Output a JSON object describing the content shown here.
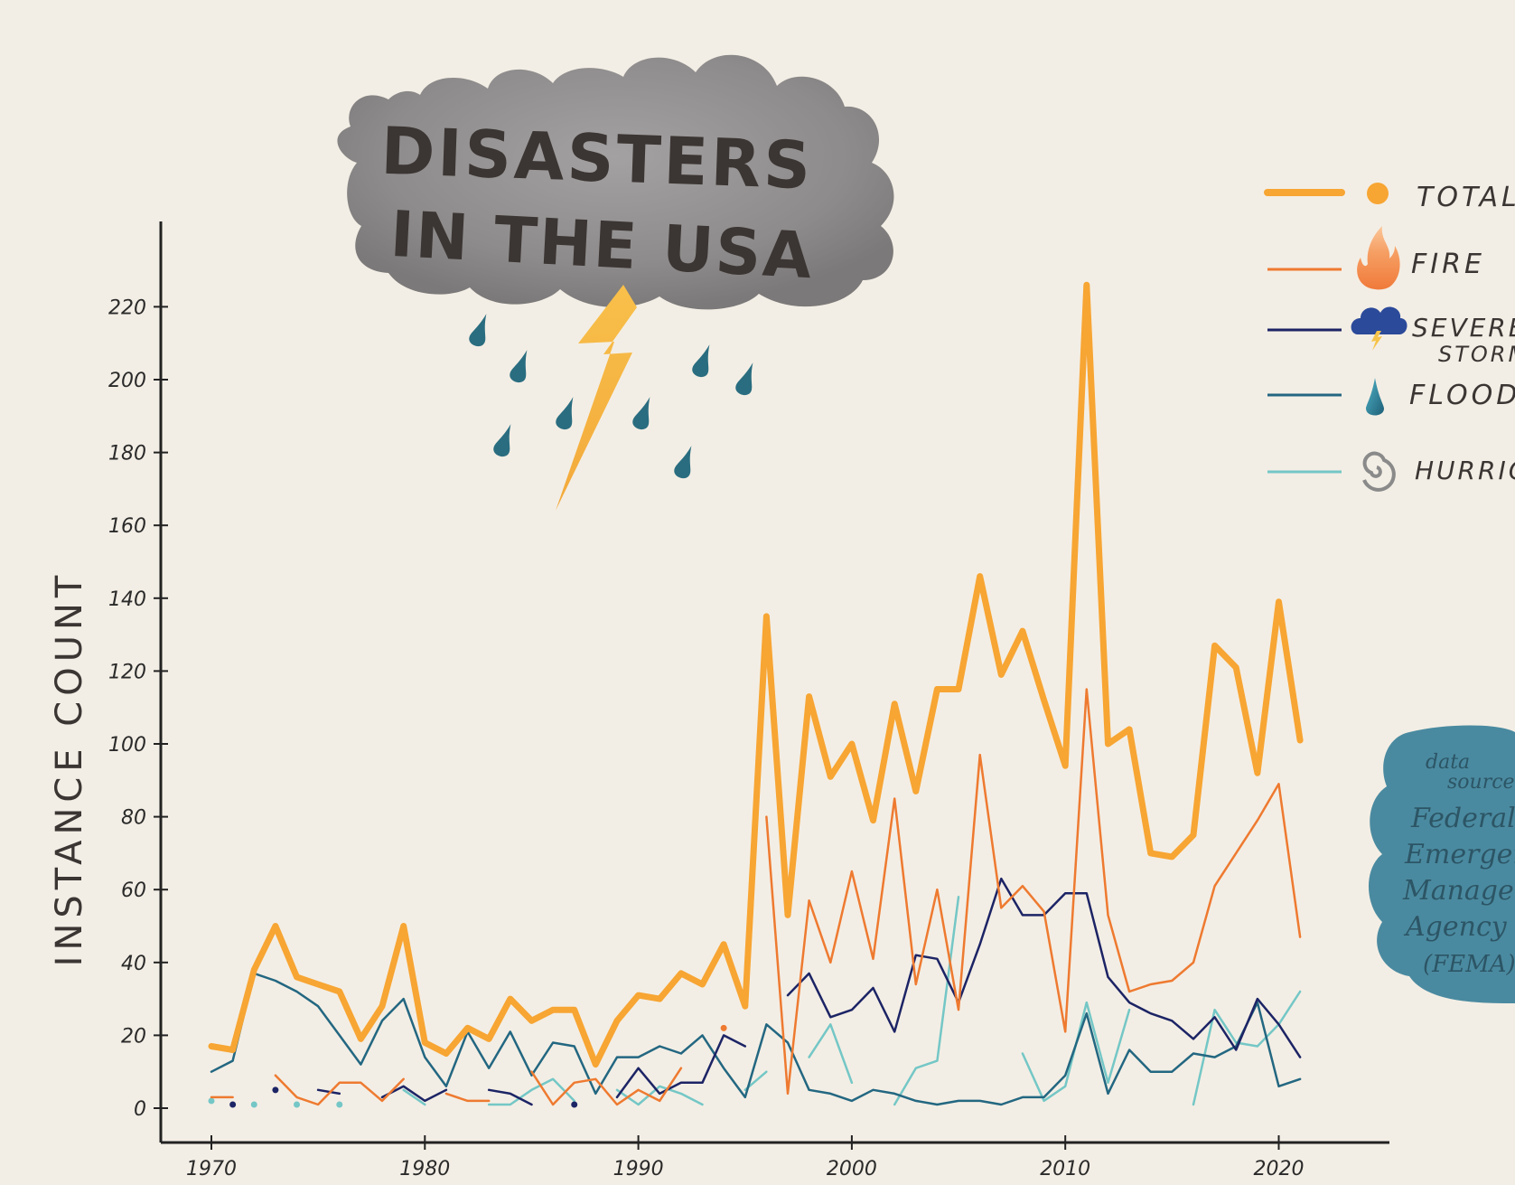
{
  "title_line1": "DISASTERS",
  "title_line2": "IN THE USA",
  "y_axis_label": "INSTANCE COUNT",
  "legend": [
    {
      "label": "TOTAL",
      "icon": "dot-icon"
    },
    {
      "label": "FIRE",
      "icon": "fire-icon"
    },
    {
      "label": "SEVERE",
      "label2": "STORM",
      "icon": "storm-cloud-icon"
    },
    {
      "label": "FLOOD",
      "icon": "water-drop-icon"
    },
    {
      "label": "HURRICA",
      "icon": "hurricane-icon"
    }
  ],
  "source_note": [
    "data",
    "source",
    "Federal",
    "Emergen",
    "Managem",
    "Agency",
    "(FEMA)"
  ],
  "colors": {
    "background": "#f3eee5",
    "total": "#f7a533",
    "fire": "#ee7a30",
    "severe_storm": "#1c2465",
    "flood": "#236781",
    "hurricane": "#74c7c6",
    "cloud": "#8e8c8c",
    "source_blob": "#4a8aa0",
    "axis": "#222222"
  },
  "chart_data": {
    "type": "line",
    "title": "DISASTERS IN THE USA",
    "ylabel": "INSTANCE COUNT",
    "xlabel": "",
    "xlim": [
      1968,
      2025
    ],
    "ylim": [
      -8,
      243
    ],
    "x_ticks": [
      1970,
      1980,
      1990,
      2000,
      2010,
      2020
    ],
    "y_ticks": [
      0,
      20,
      40,
      60,
      80,
      100,
      120,
      140,
      160,
      180,
      200,
      220
    ],
    "grid": false,
    "legend_position": "top-right",
    "series": [
      {
        "name": "TOTAL",
        "key": "total",
        "x": [
          1970,
          1971,
          1972,
          1973,
          1974,
          1975,
          1976,
          1977,
          1978,
          1979,
          1980,
          1981,
          1982,
          1983,
          1984,
          1985,
          1986,
          1987,
          1988,
          1989,
          1990,
          1991,
          1992,
          1993,
          1994,
          1995,
          1996,
          1997,
          1998,
          1999,
          2000,
          2001,
          2002,
          2003,
          2004,
          2005,
          2006,
          2007,
          2008,
          2009,
          2010,
          2011,
          2012,
          2013,
          2014,
          2015,
          2016,
          2017,
          2018,
          2019,
          2020,
          2021
        ],
        "y": [
          17,
          16,
          38,
          50,
          36,
          34,
          32,
          19,
          28,
          50,
          18,
          15,
          22,
          19,
          30,
          24,
          27,
          27,
          12,
          24,
          31,
          30,
          37,
          34,
          45,
          28,
          135,
          53,
          113,
          91,
          100,
          79,
          111,
          87,
          115,
          115,
          146,
          119,
          131,
          112,
          94,
          226,
          100,
          104,
          70,
          69,
          75,
          127,
          121,
          92,
          139,
          101
        ]
      },
      {
        "name": "FIRE",
        "key": "fire",
        "x": [
          1970,
          1971,
          null,
          1973,
          1974,
          1975,
          1976,
          1977,
          1978,
          1979,
          null,
          1981,
          1982,
          1983,
          null,
          1985,
          1986,
          1987,
          1988,
          1989,
          1990,
          1991,
          1992,
          null,
          1994,
          null,
          1996,
          1997,
          1998,
          1999,
          2000,
          2001,
          2002,
          2003,
          2004,
          2005,
          2006,
          2007,
          2008,
          2009,
          2010,
          2011,
          2012,
          2013,
          2014,
          2015,
          2016,
          2017,
          2018,
          2019,
          2020,
          2021
        ],
        "y": [
          3,
          3,
          null,
          9,
          3,
          1,
          7,
          7,
          2,
          8,
          null,
          4,
          2,
          2,
          null,
          10,
          1,
          7,
          8,
          1,
          5,
          2,
          11,
          null,
          22,
          null,
          80,
          4,
          57,
          40,
          65,
          41,
          85,
          34,
          60,
          27,
          97,
          55,
          61,
          54,
          21,
          115,
          53,
          32,
          34,
          35,
          40,
          61,
          70,
          79,
          89,
          47
        ]
      },
      {
        "name": "SEVERE STORM",
        "key": "severe_storm",
        "x": [
          1971,
          null,
          1973,
          null,
          1975,
          1976,
          null,
          1978,
          1979,
          1980,
          1981,
          null,
          1983,
          1984,
          1985,
          null,
          1987,
          null,
          1989,
          1990,
          1991,
          1992,
          1993,
          1994,
          1995,
          null,
          1997,
          1998,
          1999,
          2000,
          2001,
          2002,
          2003,
          2004,
          2005,
          2006,
          2007,
          2008,
          2009,
          2010,
          2011,
          2012,
          2013,
          2014,
          2015,
          2016,
          2017,
          2018,
          2019,
          2020,
          2021
        ],
        "y": [
          1,
          null,
          5,
          null,
          5,
          4,
          null,
          3,
          6,
          2,
          5,
          null,
          5,
          4,
          1,
          null,
          1,
          null,
          3,
          11,
          4,
          7,
          7,
          20,
          17,
          null,
          31,
          37,
          25,
          27,
          33,
          21,
          42,
          41,
          29,
          45,
          63,
          53,
          53,
          59,
          59,
          36,
          29,
          26,
          24,
          19,
          25,
          16,
          30,
          23,
          14
        ]
      },
      {
        "name": "FLOOD",
        "key": "flood",
        "x": [
          1970,
          1971,
          1972,
          1973,
          1974,
          1975,
          1976,
          1977,
          1978,
          1979,
          1980,
          1981,
          1982,
          1983,
          1984,
          1985,
          1986,
          1987,
          1988,
          1989,
          1990,
          1991,
          1992,
          1993,
          1994,
          1995,
          1996,
          1997,
          1998,
          1999,
          2000,
          2001,
          2002,
          2003,
          2004,
          2005,
          2006,
          2007,
          2008,
          2009,
          2010,
          2011,
          2012,
          2013,
          2014,
          2015,
          2016,
          2017,
          2018,
          2019,
          2020,
          2021
        ],
        "y": [
          10,
          13,
          37,
          35,
          32,
          28,
          20,
          12,
          24,
          30,
          14,
          6,
          21,
          11,
          21,
          9,
          18,
          17,
          4,
          14,
          14,
          17,
          15,
          20,
          11,
          3,
          23,
          18,
          5,
          4,
          2,
          5,
          4,
          2,
          1,
          2,
          2,
          1,
          3,
          3,
          9,
          26,
          4,
          16,
          10,
          10,
          15,
          14,
          17,
          29,
          6,
          8
        ]
      },
      {
        "name": "HURRICANE",
        "key": "hurricane",
        "x": [
          1970,
          null,
          1972,
          null,
          1974,
          null,
          1976,
          null,
          1979,
          1980,
          null,
          1983,
          1984,
          1985,
          1986,
          1987,
          null,
          1989,
          1990,
          1991,
          1992,
          1993,
          null,
          1995,
          1996,
          null,
          1998,
          1999,
          2000,
          null,
          2002,
          2003,
          2004,
          2005,
          null,
          2008,
          2009,
          2010,
          2011,
          2012,
          2013,
          null,
          2016,
          2017,
          2018,
          2019,
          2020,
          2021
        ],
        "y": [
          2,
          null,
          1,
          null,
          1,
          null,
          1,
          null,
          5,
          1,
          null,
          1,
          1,
          5,
          8,
          2,
          null,
          5,
          1,
          6,
          4,
          1,
          null,
          5,
          10,
          null,
          14,
          23,
          7,
          null,
          1,
          11,
          13,
          58,
          null,
          15,
          2,
          6,
          29,
          7,
          27,
          null,
          1,
          27,
          18,
          17,
          23,
          32
        ]
      }
    ]
  }
}
